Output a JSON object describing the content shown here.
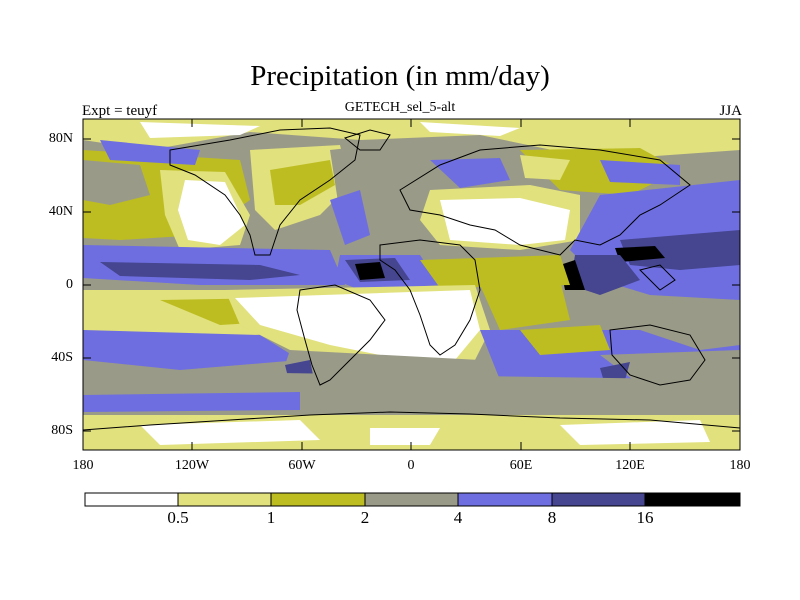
{
  "title": "Precipitation (in mm/day)",
  "subtitle": "GETECH_sel_5-alt",
  "left_label": "Expt = teuyf",
  "right_label": "JJA",
  "y_axis_labels": [
    "80N",
    "40N",
    "0",
    "40S",
    "80S"
  ],
  "x_axis_labels": [
    "180",
    "120W",
    "60W",
    "0",
    "60E",
    "120E",
    "180"
  ],
  "colorbar": {
    "levels": [
      "0.5",
      "1",
      "2",
      "4",
      "8",
      "16"
    ],
    "colors": [
      "#ffffff",
      "#e1e17d",
      "#bdbd22",
      "#9a9a88",
      "#6e6ee0",
      "#454590",
      "#000000"
    ]
  }
}
